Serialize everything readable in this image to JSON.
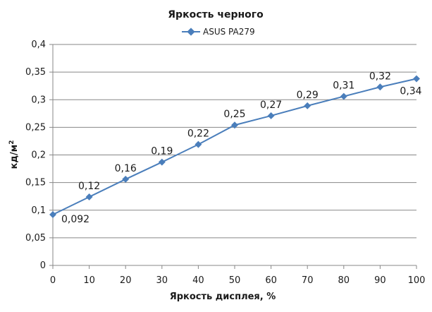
{
  "chart_data": {
    "type": "line",
    "title": "Яркость черного",
    "xlabel": "Яркость дисплея, %",
    "ylabel_base": "кд/м",
    "ylabel_sup": "2",
    "x": [
      0,
      10,
      20,
      30,
      40,
      50,
      60,
      70,
      80,
      90,
      100
    ],
    "series": [
      {
        "name": "ASUS PA279",
        "values": [
          0.092,
          0.124,
          0.156,
          0.187,
          0.219,
          0.254,
          0.271,
          0.289,
          0.306,
          0.323,
          0.338
        ],
        "labels": [
          "0,092",
          "0,12",
          "0,16",
          "0,19",
          "0,22",
          "0,25",
          "0,27",
          "0,29",
          "0,31",
          "0,32",
          "0,34"
        ]
      }
    ],
    "xlim": [
      0,
      100
    ],
    "ylim": [
      0,
      0.4
    ],
    "x_ticks": [
      "0",
      "10",
      "20",
      "30",
      "40",
      "50",
      "60",
      "70",
      "80",
      "90",
      "100"
    ],
    "y_ticks": [
      "0",
      "0,05",
      "0,1",
      "0,15",
      "0,2",
      "0,25",
      "0,3",
      "0,35",
      "0,4"
    ],
    "grid": true,
    "legend_position": "top-center",
    "colors": {
      "series": "#4a7ebb",
      "grid": "#878787",
      "axis": "#878787"
    }
  }
}
